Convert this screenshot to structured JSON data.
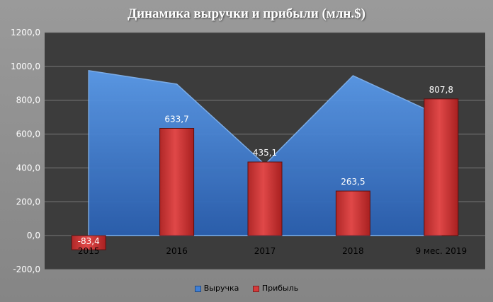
{
  "chart_data": {
    "type": "bar",
    "title": "Динамика выручки и прибыли (млн.$)",
    "categories": [
      "2015",
      "2016",
      "2017",
      "2018",
      "9  мес. 2019"
    ],
    "series": [
      {
        "name": "Выручка",
        "kind": "area",
        "color": "#3f7fd6",
        "values": [
          975,
          895,
          420,
          945,
          705
        ]
      },
      {
        "name": "Прибыль",
        "kind": "bar",
        "color": "#d63a3a",
        "values": [
          -83.4,
          633.7,
          435.1,
          263.5,
          807.8
        ],
        "labels": [
          "-83,4",
          "633,7",
          "435,1",
          "263,5",
          "807,8"
        ]
      }
    ],
    "ylim": [
      -200,
      1200
    ],
    "yticks": [
      -200,
      0,
      200,
      400,
      600,
      800,
      1000,
      1200
    ],
    "ytick_labels": [
      "-200,0",
      "0,0",
      "200,0",
      "400,0",
      "600,0",
      "800,0",
      "1000,0",
      "1200,0"
    ],
    "grid": true,
    "legend_position": "bottom",
    "plot_background": "#3c3c3c"
  }
}
